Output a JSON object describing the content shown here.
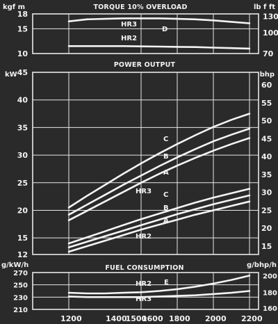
{
  "chart_data": [
    {
      "type": "line",
      "title": "TORQUE 10% OVERLOAD",
      "left_unit": "kgf m",
      "right_unit": "lb f ft",
      "x": [
        1200,
        1300,
        1400,
        1500,
        1600,
        1700,
        1800,
        1900,
        2000,
        2100,
        2200
      ],
      "xlim": [
        1000,
        2250
      ],
      "ylim": [
        10,
        18
      ],
      "left_ticks": [
        10,
        15,
        18
      ],
      "right_ticks": [
        "70",
        "100",
        "130"
      ],
      "series": [
        {
          "name": "HR3",
          "annotation": "D",
          "values": [
            16.5,
            16.9,
            17.0,
            17.1,
            17.1,
            17.1,
            17.0,
            16.9,
            16.7,
            16.4,
            16.1
          ]
        },
        {
          "name": "HR2",
          "values": [
            11.5,
            11.5,
            11.5,
            11.5,
            11.45,
            11.4,
            11.35,
            11.3,
            11.2,
            11.1,
            11.0
          ]
        }
      ]
    },
    {
      "type": "line",
      "title": "POWER OUTPUT",
      "left_unit": "kW",
      "right_unit": "bhp",
      "x": [
        1200,
        1300,
        1400,
        1500,
        1600,
        1700,
        1800,
        1900,
        2000,
        2100,
        2200
      ],
      "xlim": [
        1000,
        2250
      ],
      "ylim": [
        12,
        45
      ],
      "left_ticks": [
        12,
        15,
        20,
        25,
        30,
        35,
        40,
        45
      ],
      "right_ticks": [
        15,
        20,
        25,
        30,
        35,
        40,
        45,
        50,
        55,
        60
      ],
      "series": [
        {
          "name": "C",
          "values": [
            20.5,
            22.6,
            24.6,
            26.6,
            28.5,
            30.3,
            32.0,
            33.6,
            35.1,
            36.4,
            37.5
          ]
        },
        {
          "name": "B",
          "values": [
            19.2,
            21.0,
            22.8,
            24.6,
            26.3,
            28.0,
            29.6,
            31.1,
            32.5,
            33.7,
            34.8
          ]
        },
        {
          "name": "A",
          "values": [
            18.2,
            19.9,
            21.6,
            23.3,
            25.0,
            26.6,
            28.1,
            29.5,
            30.8,
            32.0,
            33.1
          ]
        },
        {
          "name": "C",
          "group": "HR3",
          "values": [
            14.0,
            15.1,
            16.2,
            17.3,
            18.4,
            19.4,
            20.4,
            21.4,
            22.3,
            23.1,
            23.9
          ]
        },
        {
          "name": "B",
          "group": "HR3",
          "values": [
            13.3,
            14.3,
            15.3,
            16.3,
            17.3,
            18.3,
            19.3,
            20.2,
            21.1,
            21.9,
            22.7
          ]
        },
        {
          "name": "HR2",
          "values": [
            12.5,
            13.5,
            14.5,
            15.5,
            16.5,
            17.4,
            18.3,
            19.2,
            20.0,
            20.8,
            21.6
          ]
        }
      ],
      "annotations": [
        "C",
        "B",
        "A",
        "HR3",
        "C",
        "B",
        "A",
        "HR2"
      ]
    },
    {
      "type": "line",
      "title": "FUEL CONSUMPTION",
      "left_unit": "g/kW/h",
      "right_unit": "g/bhp/h",
      "x": [
        1200,
        1300,
        1400,
        1500,
        1600,
        1700,
        1800,
        1900,
        2000,
        2100,
        2200
      ],
      "xlim": [
        1000,
        2250
      ],
      "ylim": [
        210,
        270
      ],
      "left_ticks": [
        210,
        230,
        250,
        270
      ],
      "right_ticks": [
        160,
        180,
        200
      ],
      "series": [
        {
          "name": "HR2",
          "annotation": "E",
          "values": [
            237,
            236,
            236,
            237,
            238,
            240,
            243,
            247,
            252,
            258,
            265
          ]
        },
        {
          "name": "HR3",
          "values": [
            231,
            230,
            230,
            230,
            230,
            231,
            232,
            233,
            235,
            237,
            240
          ]
        }
      ]
    }
  ],
  "x_tick_labels": [
    "1200",
    "1400",
    "1500",
    "1600",
    "1800",
    "2000",
    "2200"
  ]
}
